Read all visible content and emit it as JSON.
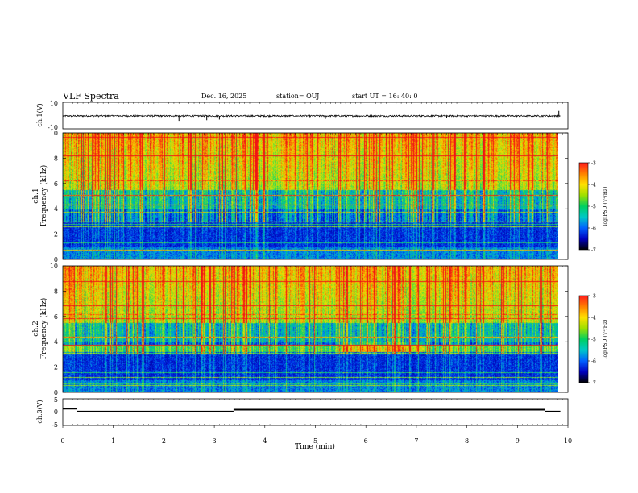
{
  "header": {
    "title": "VLF Spectra",
    "date": "Dec. 16, 2025",
    "station": "station= OUJ",
    "start": "start  UT  =   16: 40: 0"
  },
  "colorbar": {
    "label": "log(PSD)(V²/Hz)",
    "ticks": [
      "-3",
      "-4",
      "-5",
      "-6",
      "-7"
    ],
    "colors": [
      "#ff1a1a",
      "#ff8000",
      "#ffe000",
      "#9ee000",
      "#00d060",
      "#00c8c8",
      "#0060ff",
      "#0000c0",
      "#000000"
    ]
  },
  "chart_data": [
    {
      "type": "line",
      "panel": "ch1-waveform",
      "ylabel": "ch.1(V)",
      "ylim": [
        -10,
        10
      ],
      "yticks": [
        "10",
        "-10"
      ],
      "xlim": [
        0,
        10
      ],
      "baseline": -0.3,
      "spikes": [
        {
          "x": 2.3,
          "y": -4.0
        },
        {
          "x": 2.85,
          "y": -3.5
        },
        {
          "x": 3.1,
          "y": -3.0
        },
        {
          "x": 5.2,
          "y": -2.5
        },
        {
          "x": 7.6,
          "y": -2.0
        },
        {
          "x": 9.82,
          "y": 3.5
        }
      ]
    },
    {
      "type": "heatmap",
      "panel": "ch1-spectrogram",
      "ylabel": "ch.1",
      "ylabel2": "Frequency (kHz)",
      "xlim": [
        0,
        10
      ],
      "ylim": [
        0,
        10
      ],
      "yticks": [
        "0",
        "2",
        "4",
        "6",
        "8",
        "10"
      ],
      "zlim": [
        -7,
        -3
      ]
    },
    {
      "type": "heatmap",
      "panel": "ch2-spectrogram",
      "ylabel": "ch.2",
      "ylabel2": "Frequency (kHz)",
      "xlim": [
        0,
        10
      ],
      "ylim": [
        0,
        10
      ],
      "yticks": [
        "0",
        "2",
        "4",
        "6",
        "8",
        "10"
      ],
      "zlim": [
        -7,
        -3
      ]
    },
    {
      "type": "line",
      "panel": "ch3-waveform",
      "ylabel": "ch.3(V)",
      "ylim": [
        -5,
        5
      ],
      "yticks": [
        "5",
        "0",
        "-5"
      ],
      "xlim": [
        0,
        10
      ],
      "segments": [
        {
          "x0": 0.0,
          "x1": 0.28,
          "y": 1.3
        },
        {
          "x0": 0.28,
          "x1": 3.38,
          "y": 0.2
        },
        {
          "x0": 3.38,
          "x1": 9.55,
          "y": 0.9
        },
        {
          "x0": 9.55,
          "x1": 9.85,
          "y": 0.2
        }
      ],
      "xlabel": "Time (min)",
      "xticks": [
        "0",
        "1",
        "2",
        "3",
        "4",
        "5",
        "6",
        "7",
        "8",
        "9",
        "10"
      ]
    }
  ]
}
